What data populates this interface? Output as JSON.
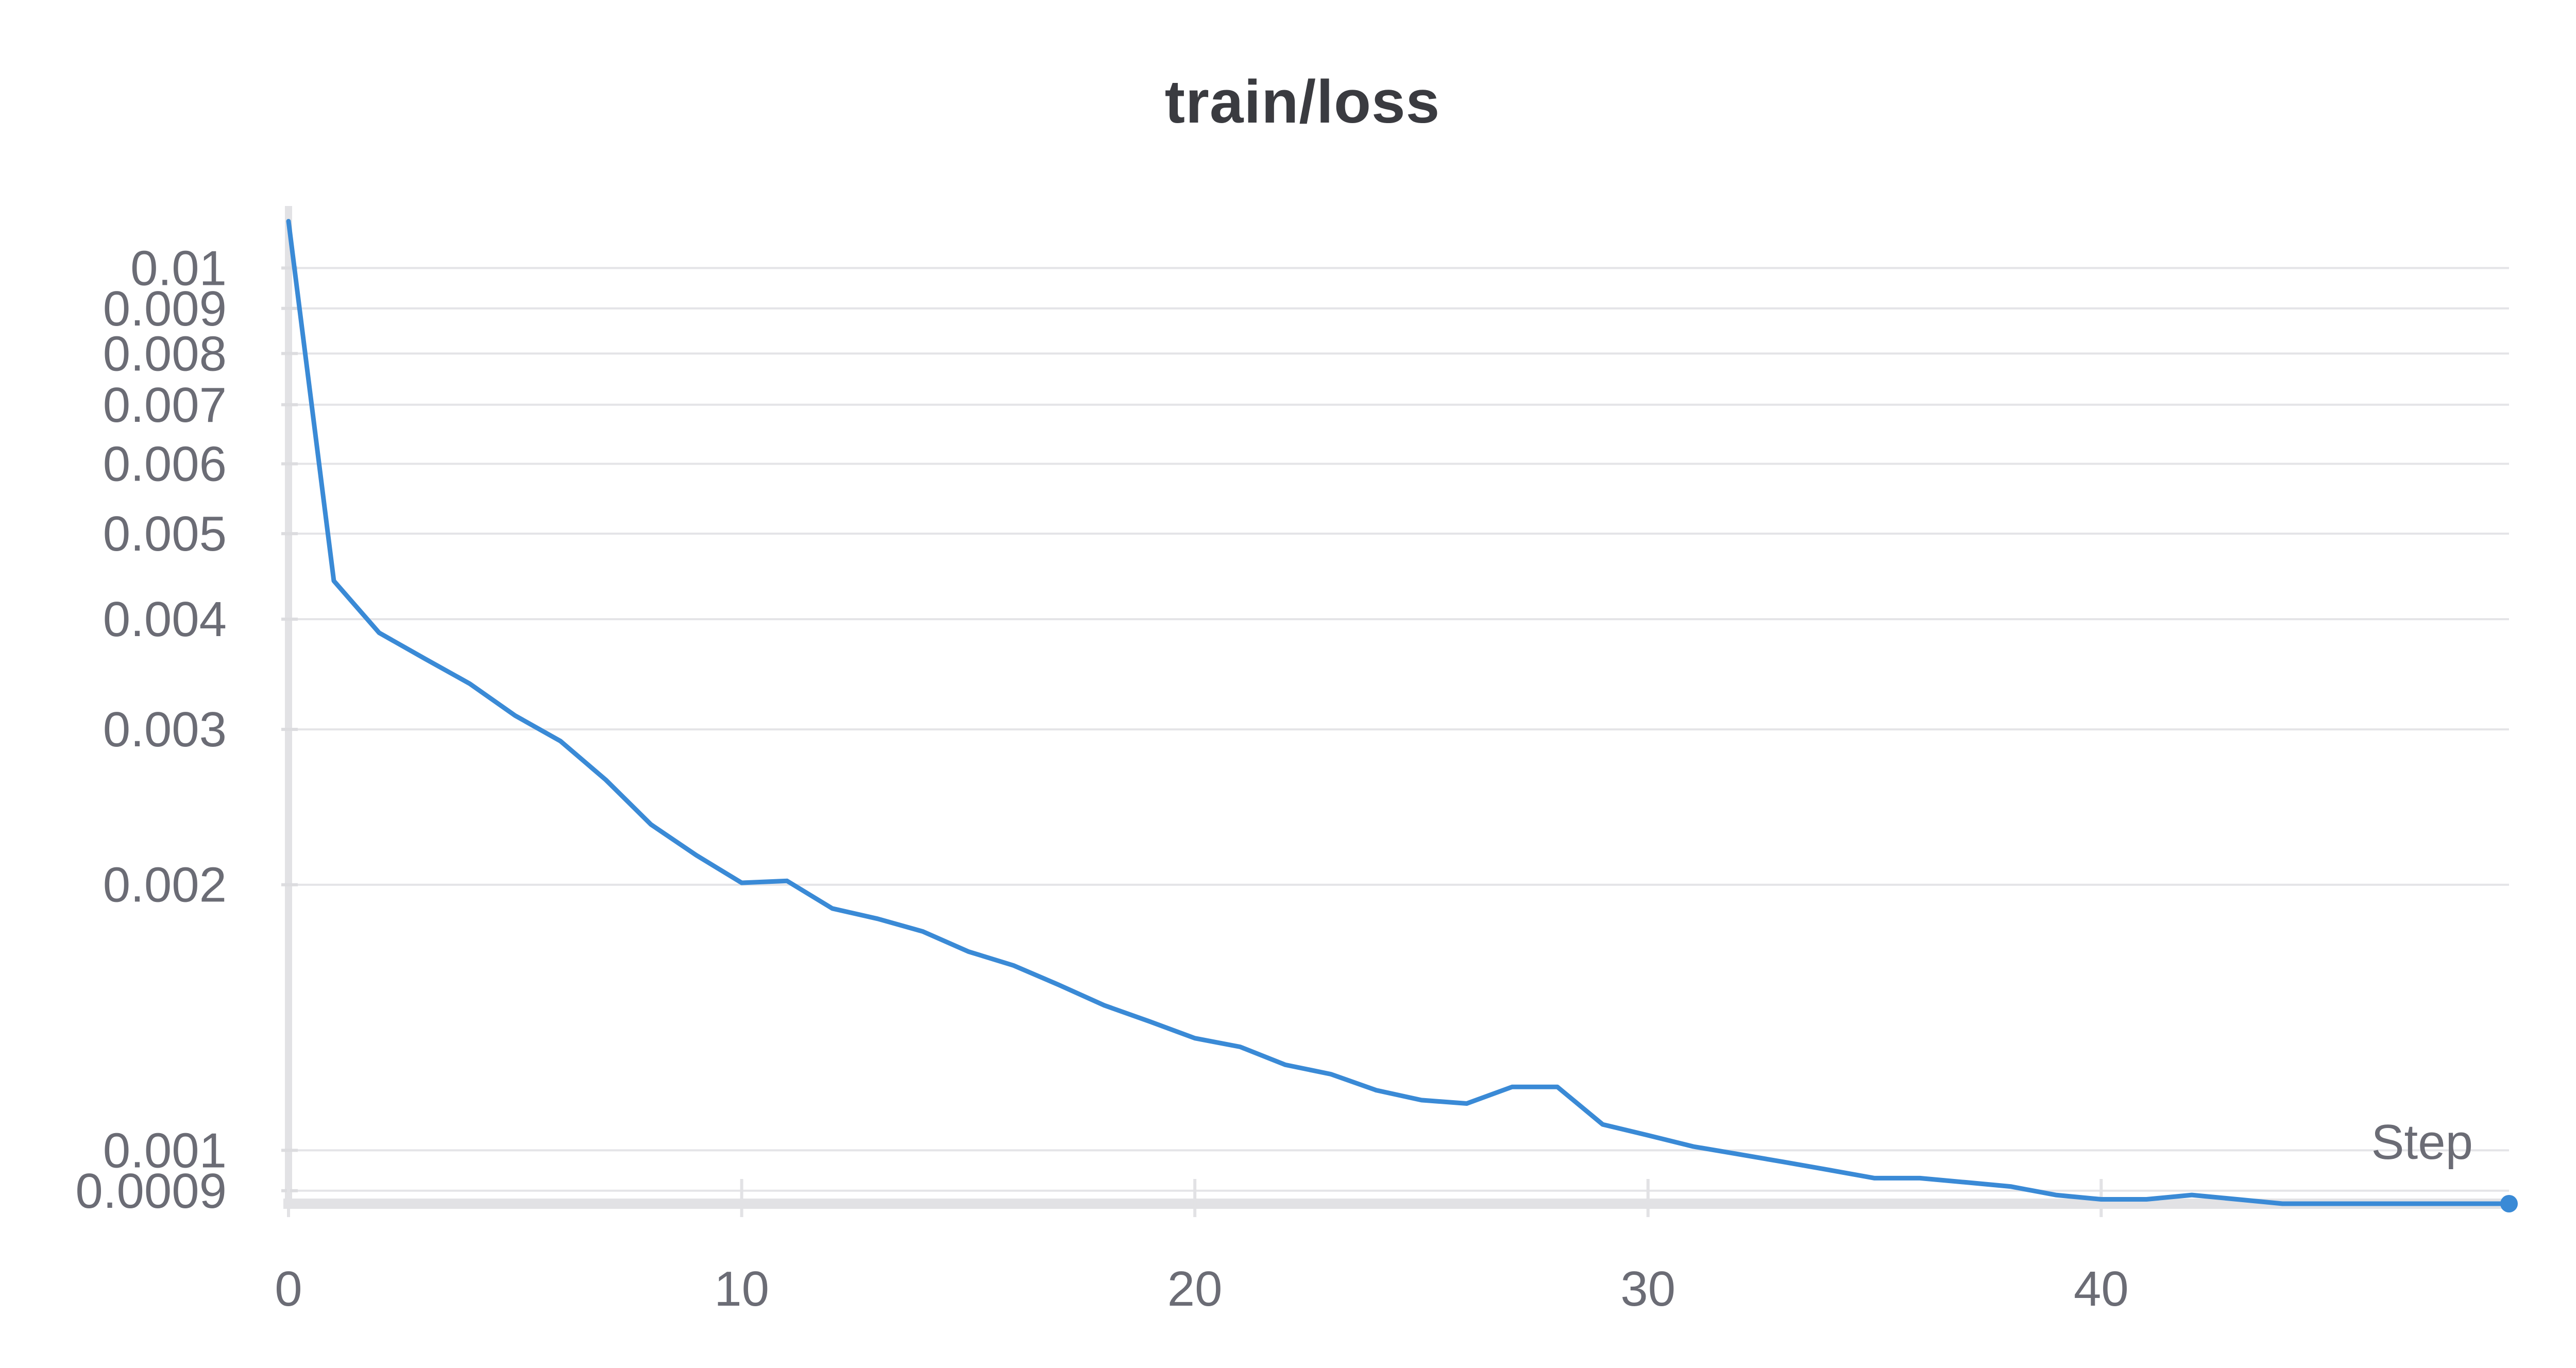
{
  "chart_data": {
    "type": "line",
    "title": "train/loss",
    "xlabel": "Step",
    "ylabel": "",
    "yscale": "log",
    "xlim": [
      0,
      49
    ],
    "ylim": [
      0.00087,
      0.0116
    ],
    "xticks": [
      0,
      10,
      20,
      30,
      40
    ],
    "xtick_labels": [
      "0",
      "10",
      "20",
      "30",
      "40"
    ],
    "yticks": [
      0.01,
      0.009,
      0.008,
      0.007,
      0.006,
      0.005,
      0.004,
      0.003,
      0.002,
      0.001,
      0.0009
    ],
    "ytick_labels": [
      "0.01",
      "0.009",
      "0.008",
      "0.007",
      "0.006",
      "0.005",
      "0.004",
      "0.003",
      "0.002",
      "0.001",
      "0.0009"
    ],
    "grid": true,
    "color": "#3a8ad6",
    "series": [
      {
        "x": [
          0,
          1,
          2,
          3,
          4,
          5,
          6,
          7,
          8,
          9,
          10,
          11,
          12,
          13,
          14,
          15,
          16,
          17,
          18,
          19,
          20,
          21,
          22,
          23,
          24,
          25,
          26,
          27,
          28,
          29,
          30,
          31,
          32,
          33,
          34,
          35,
          36,
          37,
          38,
          39,
          40,
          41,
          42,
          43,
          44,
          45,
          46,
          47,
          48,
          49
        ],
        "values": [
          0.0113,
          0.00442,
          0.00386,
          0.00361,
          0.00338,
          0.00311,
          0.00291,
          0.00263,
          0.00234,
          0.00216,
          0.00201,
          0.00202,
          0.00188,
          0.00183,
          0.00177,
          0.00168,
          0.00162,
          0.00154,
          0.00146,
          0.0014,
          0.00134,
          0.00131,
          0.00125,
          0.00122,
          0.00117,
          0.00114,
          0.00113,
          0.00118,
          0.00118,
          0.00107,
          0.00104,
          0.00101,
          0.00099,
          0.00097,
          0.00095,
          0.00093,
          0.00093,
          0.00092,
          0.00091,
          0.00089,
          0.00088,
          0.00088,
          0.00089,
          0.00088,
          0.00087,
          0.00087,
          0.00087,
          0.00087,
          0.00087,
          0.00087
        ]
      }
    ]
  }
}
